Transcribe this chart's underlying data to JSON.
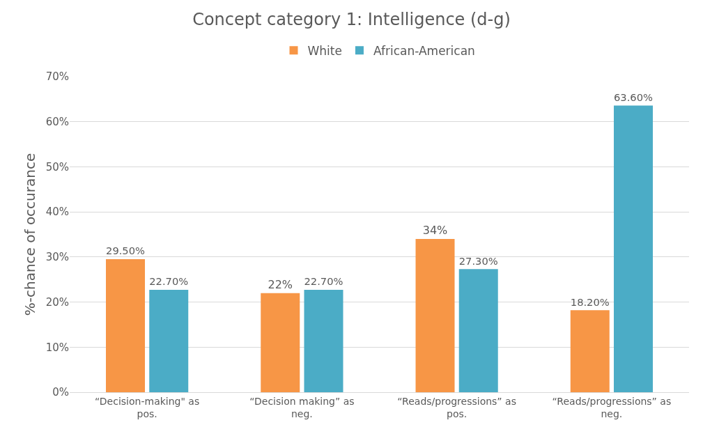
{
  "chart_data": {
    "type": "bar",
    "title": "Concept category 1: Intelligence (d-g)",
    "ylabel": "%-chance of occurance",
    "categories": [
      "“Decision-making\" as pos.",
      "“Decision making” as neg.",
      "“Reads/progressions” as pos.",
      "“Reads/progressions” as neg."
    ],
    "series": [
      {
        "name": "White",
        "color": "#f79646",
        "values": [
          29.5,
          22,
          34,
          18.2
        ],
        "value_labels": [
          "29.50%",
          "22%",
          "34%",
          "18.20%"
        ]
      },
      {
        "name": "African-American",
        "color": "#4bacc6",
        "values": [
          22.7,
          22.7,
          27.3,
          63.6
        ],
        "value_labels": [
          "22.70%",
          "22.70%",
          "27.30%",
          "63.60%"
        ]
      }
    ],
    "ylim": [
      0,
      70
    ],
    "yticks": [
      {
        "value": 0,
        "label": "0%"
      },
      {
        "value": 10,
        "label": "10%"
      },
      {
        "value": 20,
        "label": "20%"
      },
      {
        "value": 30,
        "label": "30%"
      },
      {
        "value": 40,
        "label": "40%"
      },
      {
        "value": 50,
        "label": "50%"
      },
      {
        "value": 60,
        "label": "60%"
      },
      {
        "value": 70,
        "label": "70%"
      }
    ],
    "grid": "y",
    "legend": "top"
  }
}
